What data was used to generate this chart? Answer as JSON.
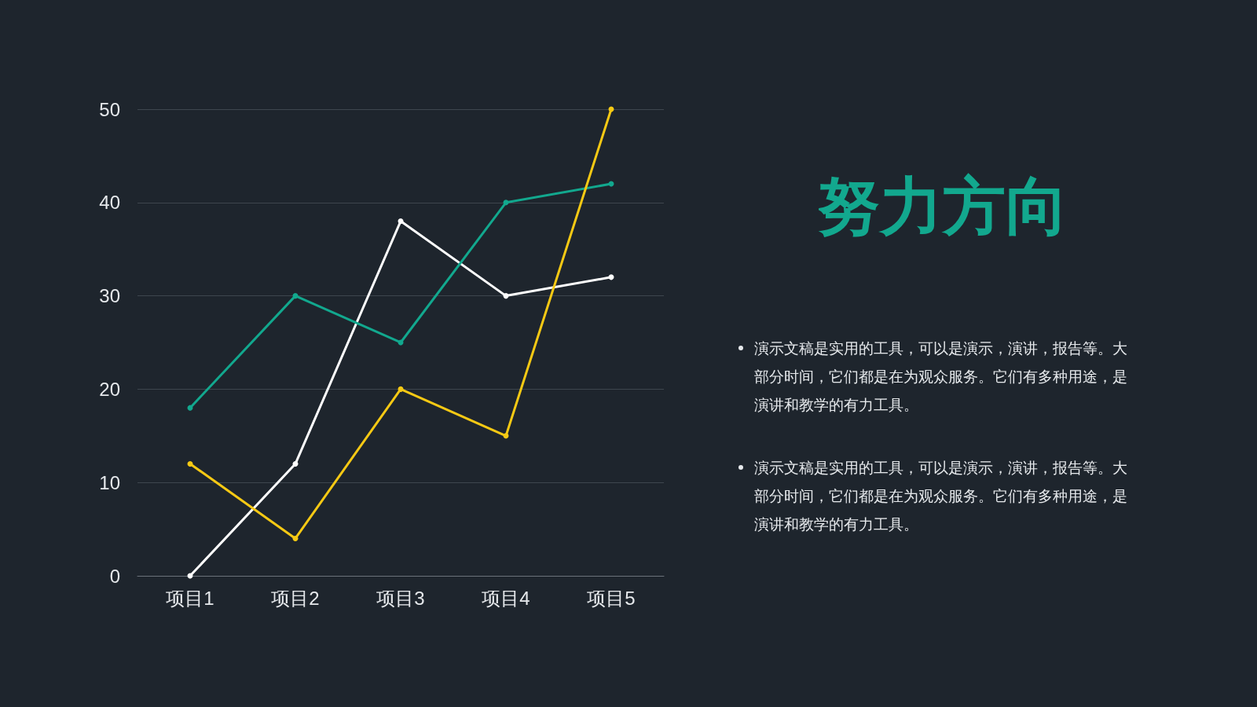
{
  "chart_data": {
    "type": "line",
    "title": "努力方向",
    "categories": [
      "项目1",
      "项目2",
      "项目3",
      "项目4",
      "项目5"
    ],
    "series": [
      {
        "color": "#ffffff",
        "values": [
          0,
          12,
          38,
          30,
          32
        ]
      },
      {
        "color": "#12a88e",
        "values": [
          18,
          30,
          25,
          40,
          42
        ]
      },
      {
        "color": "#f6c914",
        "values": [
          12,
          4,
          20,
          15,
          50
        ]
      }
    ],
    "ylim": [
      0,
      50
    ],
    "yticks": [
      0,
      10,
      20,
      30,
      40,
      50
    ],
    "grid": "y",
    "marker": "circle",
    "line_style": "solid",
    "annotations": [
      "演示文稿是实用的工具，可以是演示，演讲，报告等。大部分时间，它们都是在为观众服务。它们有多种用途，是演讲和教学的有力工具。",
      "演示文稿是实用的工具，可以是演示，演讲，报告等。大部分时间，它们都是在为观众服务。它们有多种用途，是演讲和教学的有力工具。"
    ]
  }
}
